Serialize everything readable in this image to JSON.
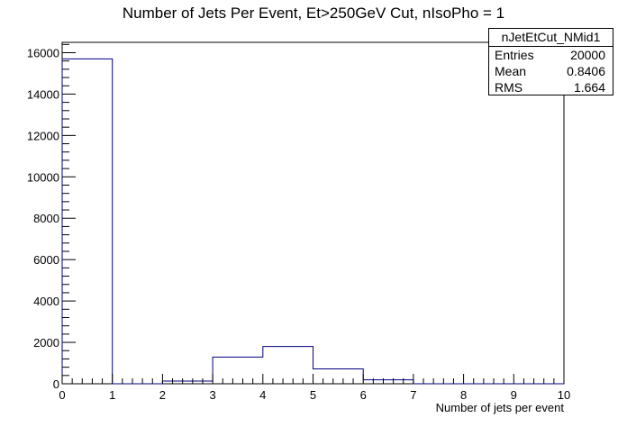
{
  "title": "Number of Jets Per Event, Et>250GeV Cut, nIsoPho = 1",
  "stats": {
    "name": "nJetEtCut_NMid1",
    "rows": [
      {
        "label": "Entries",
        "value": "20000"
      },
      {
        "label": "Mean",
        "value": "0.8406"
      },
      {
        "label": "RMS",
        "value": "1.664"
      }
    ]
  },
  "chart_data": {
    "type": "histogram",
    "title": "Number of Jets Per Event, Et>250GeV Cut, nIsoPho = 1",
    "xlabel": "Number of jets per event",
    "ylabel": "",
    "xlim": [
      0,
      10
    ],
    "ylim": [
      0,
      16500
    ],
    "bin_edges": [
      0,
      1,
      2,
      3,
      4,
      5,
      6,
      7,
      8,
      9,
      10
    ],
    "values": [
      15700,
      0,
      130,
      1290,
      1800,
      720,
      190,
      0,
      0,
      0
    ],
    "x_ticks": [
      "0",
      "1",
      "2",
      "3",
      "4",
      "5",
      "6",
      "7",
      "8",
      "9",
      "10"
    ],
    "y_ticks": [
      "0",
      "2000",
      "4000",
      "6000",
      "8000",
      "10000",
      "12000",
      "14000",
      "16000"
    ],
    "line_color": "#000080",
    "grid": false,
    "legend": "none"
  }
}
